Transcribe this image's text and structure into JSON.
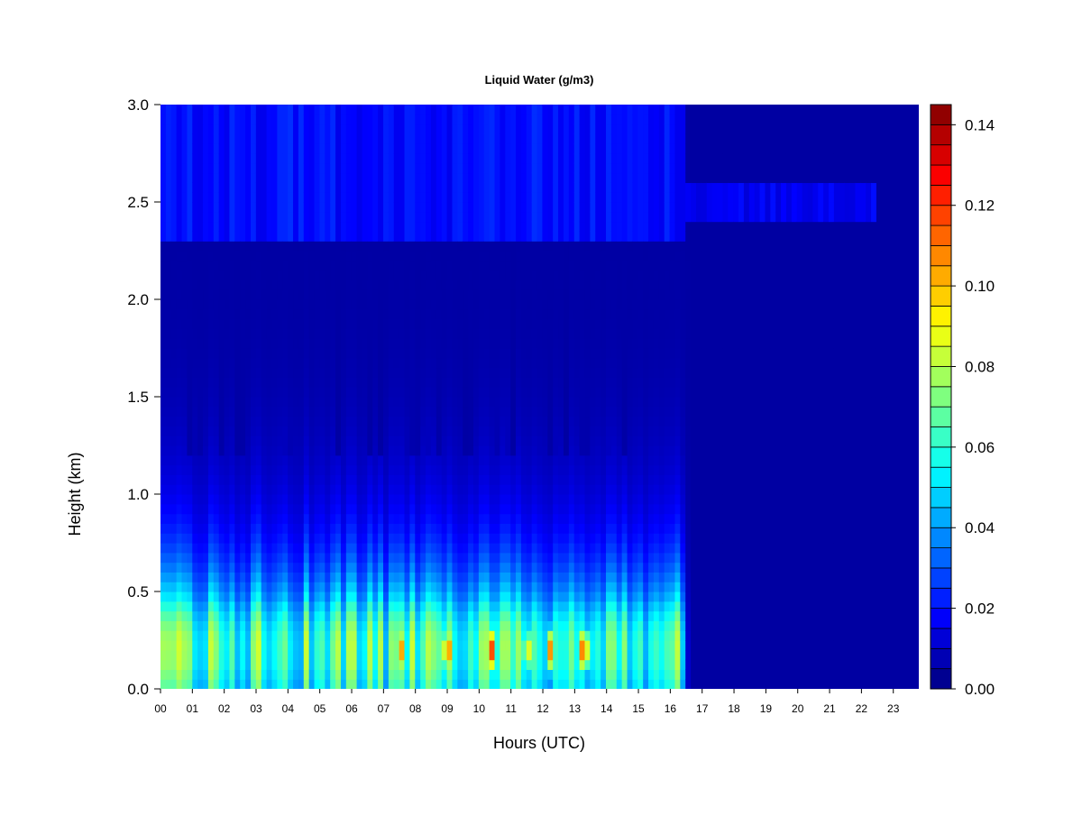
{
  "chart_data": {
    "type": "heatmap",
    "title": "Liquid Water (g/m3)",
    "xlabel": "Hours (UTC)",
    "ylabel": "Height (km)",
    "xlim": [
      0,
      23.8
    ],
    "ylim": [
      0,
      3.0
    ],
    "x_ticks": [
      "00",
      "01",
      "02",
      "03",
      "04",
      "05",
      "06",
      "07",
      "08",
      "09",
      "10",
      "11",
      "12",
      "13",
      "14",
      "15",
      "16",
      "17",
      "18",
      "19",
      "20",
      "21",
      "22",
      "23"
    ],
    "y_ticks": [
      "0.0",
      "0.5",
      "1.0",
      "1.5",
      "2.0",
      "2.5",
      "3.0"
    ],
    "colorbar": {
      "ticks": [
        "0.00",
        "0.02",
        "0.04",
        "0.06",
        "0.08",
        "0.10",
        "0.12",
        "0.14"
      ],
      "range": [
        0,
        0.145
      ],
      "levels": 29,
      "colormap": [
        "#00007f",
        "#0000ff",
        "#007fff",
        "#00ffff",
        "#7fff7f",
        "#ffff00",
        "#ff7f00",
        "#ff0000",
        "#7f0000"
      ]
    },
    "background_value": 0.005,
    "grid": false,
    "features": [
      {
        "kind": "low-level cloud layer",
        "hours": [
          0,
          16.3
        ],
        "height_km": [
          0,
          1.2
        ],
        "peak_g_m3": 0.07
      },
      {
        "kind": "upper layer",
        "hours": [
          0,
          16.5
        ],
        "height_km": [
          2.3,
          3.0
        ],
        "peak_g_m3": 0.02
      },
      {
        "kind": "upper layer",
        "hours": [
          16.5,
          22.5
        ],
        "height_km": [
          2.4,
          2.6
        ],
        "peak_g_m3": 0.015
      },
      {
        "kind": "peak",
        "hour": 7.6,
        "height_km": 0.2,
        "value": 0.11
      },
      {
        "kind": "peak",
        "hour": 9.0,
        "height_km": 0.2,
        "value": 0.135
      },
      {
        "kind": "peak",
        "hour": 10.4,
        "height_km": 0.2,
        "value": 0.12
      },
      {
        "kind": "peak",
        "hour": 11.5,
        "height_km": 0.2,
        "value": 0.11
      },
      {
        "kind": "peak",
        "hour": 12.2,
        "height_km": 0.2,
        "value": 0.115
      },
      {
        "kind": "peak",
        "hour": 13.3,
        "height_km": 0.2,
        "value": 0.14
      }
    ]
  }
}
